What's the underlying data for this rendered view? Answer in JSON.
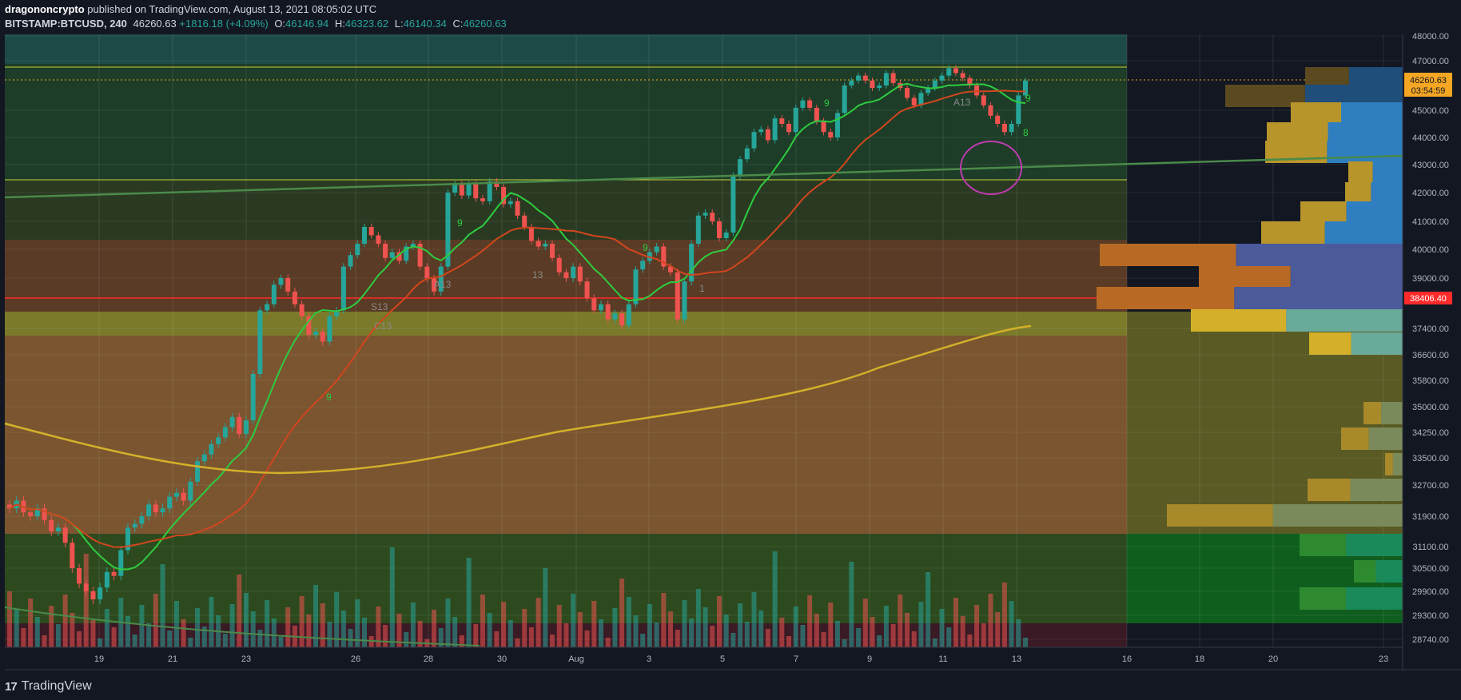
{
  "header": {
    "author": "dragononcrypto",
    "published": "published on TradingView.com, August 13, 2021 08:05:02 UTC"
  },
  "symbol": {
    "name": "BITSTAMP:BTCUSD, 240",
    "last": "46260.63",
    "change": "+1816.18 (+4.09%)",
    "open": "46146.94",
    "high": "46323.62",
    "low": "46140.34",
    "close": "46260.63",
    "open_label": "O:",
    "high_label": "H:",
    "low_label": "L:",
    "close_label": "C:"
  },
  "footer": {
    "brand": "TradingView",
    "logo_icon": "tradingview-logo-icon"
  },
  "colors": {
    "background": "#131722",
    "up": "#26a69a",
    "down": "#ef5350",
    "price_label": "#f5a623",
    "red_line": "#ff2a2a"
  },
  "chart_data": {
    "type": "candlestick",
    "price_axis_ticks": [
      "48000.00",
      "47000.00",
      "45000.00",
      "44000.00",
      "43000.00",
      "42000.00",
      "41000.00",
      "40000.00",
      "39000.00",
      "38406.40",
      "37400.00",
      "36600.00",
      "35800.00",
      "35000.00",
      "34250.00",
      "33500.00",
      "32700.00",
      "31900.00",
      "31100.00",
      "30500.00",
      "29900.00",
      "29300.00",
      "28740.00"
    ],
    "time_axis_ticks": [
      "19",
      "21",
      "23",
      "26",
      "28",
      "30",
      "Aug",
      "3",
      "5",
      "7",
      "9",
      "11",
      "13",
      "16",
      "18",
      "20",
      "23"
    ],
    "last_price_label": "46260.63",
    "countdown_label": "03:54:59",
    "red_level_label": "38406.40",
    "annotations": [
      "9",
      "9",
      "9",
      "9",
      "A13",
      "A13",
      "S13",
      "C13",
      "13",
      "1",
      "8",
      "9"
    ],
    "close_series": [
      32100,
      32300,
      32000,
      31900,
      32100,
      31800,
      31500,
      31600,
      31200,
      30500,
      30100,
      29900,
      29700,
      30000,
      30400,
      30300,
      31000,
      31600,
      31700,
      31900,
      32200,
      32000,
      32100,
      32400,
      32500,
      32300,
      32800,
      33400,
      33600,
      33900,
      34100,
      34400,
      34700,
      34200,
      34600,
      36000,
      38000,
      38200,
      38800,
      39000,
      38600,
      38200,
      37800,
      37200,
      37300,
      37000,
      37800,
      38000,
      39400,
      39800,
      40200,
      40800,
      40500,
      40200,
      39700,
      39900,
      39600,
      40100,
      40200,
      39400,
      39000,
      38600,
      39400,
      42000,
      42300,
      41900,
      42300,
      41800,
      41700,
      42400,
      42200,
      41600,
      41700,
      41200,
      40800,
      40300,
      40100,
      40200,
      39700,
      39200,
      39000,
      39400,
      38900,
      38400,
      38000,
      38200,
      37700,
      37900,
      37500,
      38200,
      39300,
      39600,
      39900,
      40100,
      39400,
      39200,
      37700,
      38900,
      40200,
      41200,
      41300,
      41000,
      40400,
      40600,
      42600,
      43200,
      43600,
      44200,
      44300,
      43900,
      44700,
      44500,
      44200,
      45100,
      45400,
      45100,
      44600,
      44200,
      44000,
      44900,
      46000,
      46200,
      46400,
      46200,
      45900,
      46000,
      46500,
      46100,
      45900,
      45500,
      45200,
      45700,
      45900,
      46200,
      46400,
      46700,
      46500,
      46300,
      46000,
      45600,
      45200,
      44800,
      44500,
      44200,
      44500,
      45600,
      46200
    ]
  }
}
